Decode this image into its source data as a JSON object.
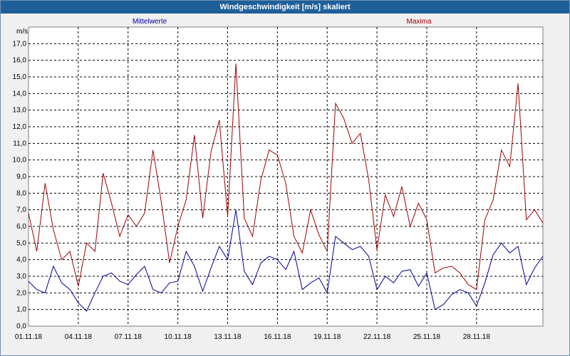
{
  "chart_data": {
    "type": "line",
    "title": "Windgeschwindigkeit [m/s] skaliert",
    "ylabel": "m/s",
    "xlabel": "",
    "ylim": [
      0,
      18
    ],
    "yticks": [
      "0,0",
      "1,0",
      "2,0",
      "3,0",
      "4,0",
      "5,0",
      "6,0",
      "7,0",
      "8,0",
      "9,0",
      "10,0",
      "11,0",
      "12,0",
      "13,0",
      "14,0",
      "15,0",
      "16,0",
      "17,0"
    ],
    "xlim": [
      0,
      31
    ],
    "xticks": [
      {
        "x": 0,
        "label": "01.11.18"
      },
      {
        "x": 3,
        "label": "04.11.18"
      },
      {
        "x": 6,
        "label": "07.11.18"
      },
      {
        "x": 9,
        "label": "10.11.18"
      },
      {
        "x": 12,
        "label": "13.11.18"
      },
      {
        "x": 15,
        "label": "16.11.18"
      },
      {
        "x": 18,
        "label": "19.11.18"
      },
      {
        "x": 21,
        "label": "22.11.18"
      },
      {
        "x": 24,
        "label": "25.11.18"
      },
      {
        "x": 27,
        "label": "28.11.18"
      }
    ],
    "grid": true,
    "series": [
      {
        "name": "Mittelwerte",
        "color": "#0000a0",
        "x": [
          0,
          0.5,
          1,
          1.5,
          2,
          2.5,
          3,
          3.5,
          4,
          4.5,
          5,
          5.5,
          6,
          6.5,
          7,
          7.5,
          8,
          8.5,
          9,
          9.5,
          10,
          10.5,
          11,
          11.5,
          12,
          12.5,
          13,
          13.5,
          14,
          14.5,
          15,
          15.5,
          16,
          16.5,
          17,
          17.5,
          18,
          18.5,
          19,
          19.5,
          20,
          20.5,
          21,
          21.5,
          22,
          22.5,
          23,
          23.5,
          24,
          24.5,
          25,
          25.5,
          26,
          26.5,
          27,
          27.5,
          28,
          28.5,
          29,
          29.5,
          30,
          30.5,
          31
        ],
        "values": [
          2.7,
          2.2,
          2.0,
          3.6,
          2.6,
          2.2,
          1.4,
          0.9,
          2.0,
          3.0,
          3.2,
          2.7,
          2.5,
          3.1,
          3.6,
          2.2,
          2.0,
          2.6,
          2.7,
          4.5,
          3.6,
          2.1,
          3.5,
          4.8,
          4.0,
          7.0,
          3.3,
          2.5,
          3.8,
          4.2,
          4.0,
          3.4,
          4.5,
          2.2,
          2.6,
          2.9,
          2.0,
          5.4,
          5.0,
          4.6,
          4.8,
          4.2,
          2.2,
          3.0,
          2.6,
          3.3,
          3.4,
          2.4,
          3.2,
          1.0,
          1.3,
          1.9,
          2.2,
          2.0,
          1.2,
          2.6,
          4.3,
          5.0,
          4.4,
          4.8,
          2.5,
          3.5,
          4.2
        ]
      },
      {
        "name": "Maxima",
        "color": "#a00000",
        "x": [
          0,
          0.5,
          1,
          1.5,
          2,
          2.5,
          3,
          3.5,
          4,
          4.5,
          5,
          5.5,
          6,
          6.5,
          7,
          7.5,
          8,
          8.5,
          9,
          9.5,
          10,
          10.5,
          11,
          11.5,
          12,
          12.5,
          13,
          13.5,
          14,
          14.5,
          15,
          15.5,
          16,
          16.5,
          17,
          17.5,
          18,
          18.5,
          19,
          19.5,
          20,
          20.5,
          21,
          21.5,
          22,
          22.5,
          23,
          23.5,
          24,
          24.5,
          25,
          25.5,
          26,
          26.5,
          27,
          27.5,
          28,
          28.5,
          29,
          29.5,
          30,
          30.5,
          31
        ],
        "values": [
          6.8,
          4.5,
          8.6,
          5.8,
          4.0,
          4.5,
          2.4,
          5.0,
          4.5,
          9.2,
          7.4,
          5.4,
          6.7,
          6.0,
          6.8,
          10.6,
          7.5,
          3.8,
          6.0,
          7.6,
          11.5,
          6.5,
          10.5,
          12.4,
          6.6,
          15.8,
          6.5,
          5.4,
          8.8,
          10.6,
          10.3,
          8.6,
          5.4,
          4.4,
          7.0,
          5.5,
          4.5,
          13.4,
          12.5,
          11.0,
          11.6,
          8.8,
          4.6,
          7.9,
          6.6,
          8.4,
          6.0,
          7.4,
          6.4,
          3.2,
          3.5,
          3.6,
          3.2,
          2.5,
          2.2,
          6.4,
          7.6,
          10.6,
          9.6,
          14.6,
          6.4,
          7.0,
          6.2
        ]
      }
    ]
  }
}
